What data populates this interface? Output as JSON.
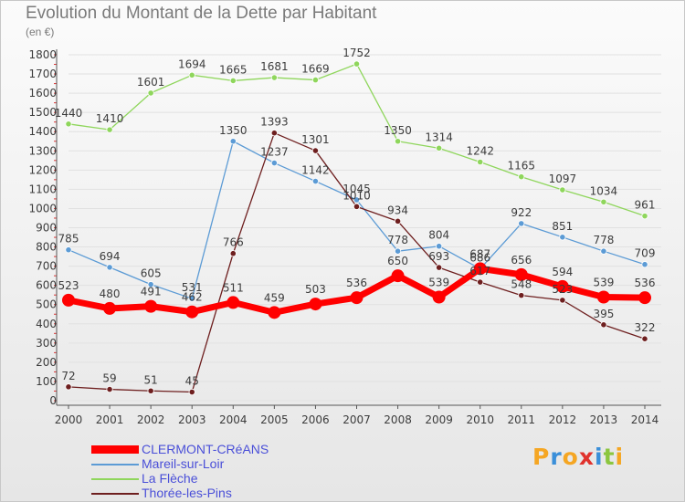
{
  "chart_data": {
    "type": "line",
    "title": "Evolution du Montant de la Dette par Habitant",
    "unit_label": "(en €)",
    "xlabel": "",
    "ylabel": "",
    "ylim": [
      0,
      1800
    ],
    "y_ticks": [
      0,
      100,
      200,
      300,
      400,
      500,
      600,
      700,
      800,
      900,
      1000,
      1100,
      1200,
      1300,
      1400,
      1500,
      1600,
      1700,
      1800
    ],
    "categories": [
      "2000",
      "2001",
      "2002",
      "2003",
      "2004",
      "2005",
      "2006",
      "2007",
      "2008",
      "2009",
      "2010",
      "2011",
      "2012",
      "2013",
      "2014"
    ],
    "series": [
      {
        "name": "CLERMONT-CRéANS",
        "color": "#ff0000",
        "values": [
          523,
          480,
          491,
          462,
          511,
          459,
          503,
          536,
          650,
          539,
          687,
          656,
          594,
          539,
          536
        ]
      },
      {
        "name": "Mareil-sur-Loir",
        "color": "#5c9bd5",
        "values": [
          785,
          694,
          605,
          531,
          1350,
          1237,
          1142,
          1045,
          778,
          804,
          686,
          922,
          851,
          778,
          709
        ]
      },
      {
        "name": "La Flèche",
        "color": "#8fd65c",
        "values": [
          1440,
          1410,
          1601,
          1694,
          1665,
          1681,
          1669,
          1752,
          1350,
          1314,
          1242,
          1165,
          1097,
          1034,
          961
        ]
      },
      {
        "name": "Thorée-les-Pins",
        "color": "#6e1f1f",
        "values": [
          72,
          59,
          51,
          45,
          766,
          1393,
          1301,
          1010,
          934,
          693,
          617,
          548,
          523,
          395,
          322
        ]
      }
    ]
  },
  "logo": {
    "text": "Proxiti",
    "colors": [
      "#f5a623",
      "#3a8fd9",
      "#f5a623",
      "#e0322d",
      "#3a8fd9",
      "#8cc63f",
      "#f5a623"
    ]
  }
}
